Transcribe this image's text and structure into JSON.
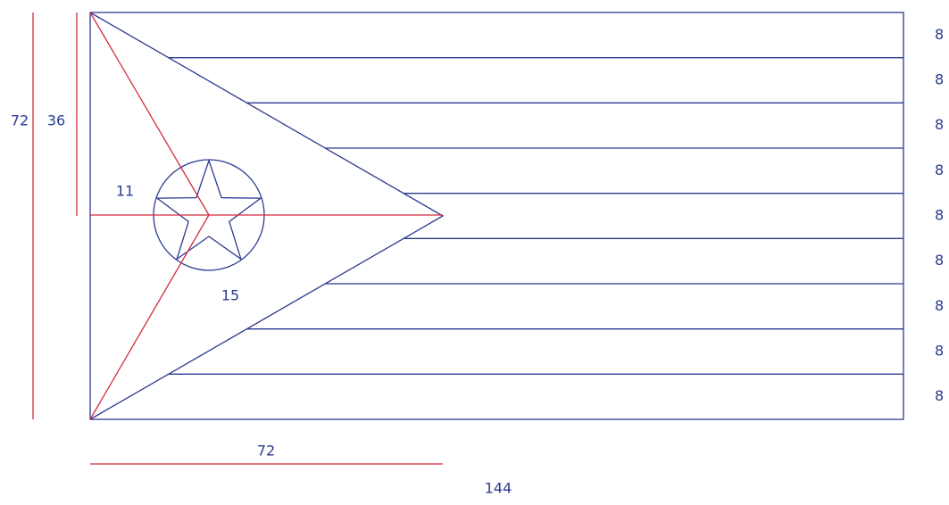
{
  "dimensions": {
    "height": "72",
    "half_height": "36",
    "star_offset": "11",
    "star_diameter": "15",
    "triangle_length": "72",
    "width": "144"
  },
  "stripe_labels": [
    "8",
    "8",
    "8",
    "8",
    "8",
    "8",
    "8",
    "8",
    "8"
  ]
}
